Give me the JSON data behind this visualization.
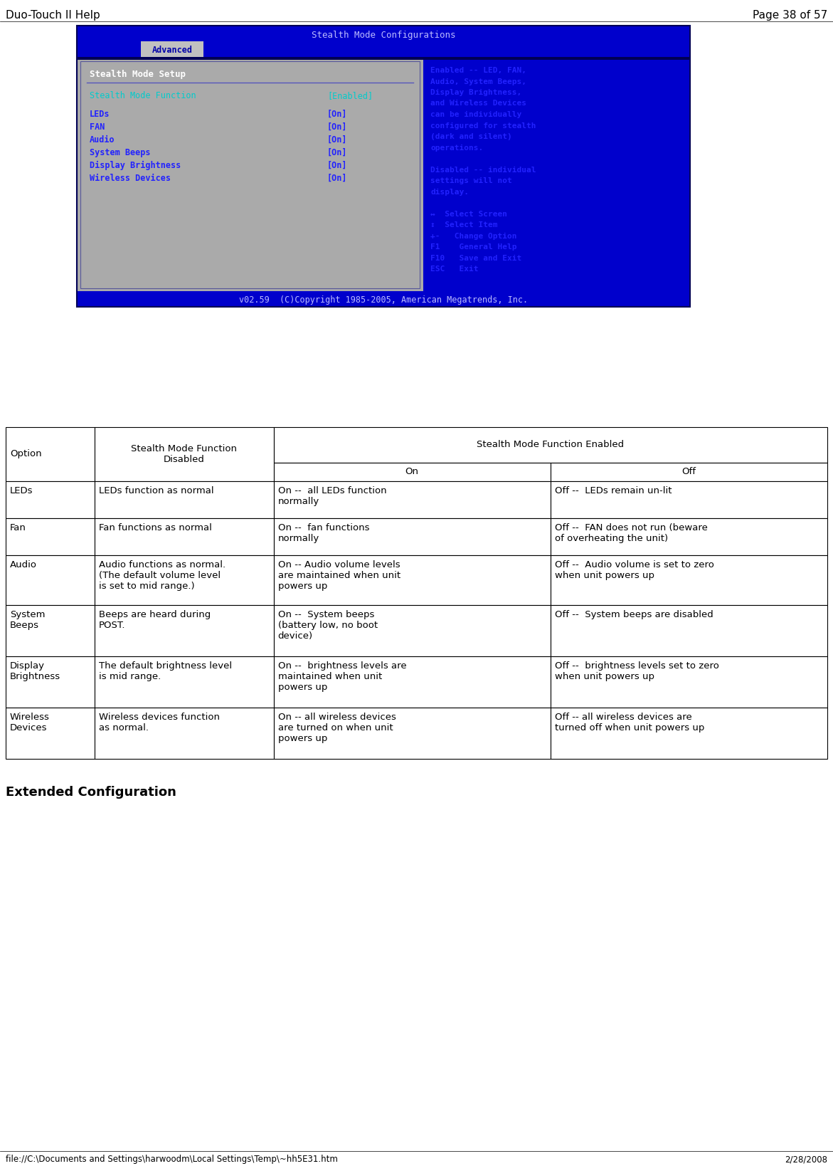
{
  "page_header_left": "Duo-Touch II Help",
  "page_header_right": "Page 38 of 57",
  "footer_left": "file://C:\\Documents and Settings\\harwoodm\\Local Settings\\Temp\\~hh5E31.htm",
  "footer_right": "2/28/2008",
  "bios_title": "Stealth Mode Configurations",
  "bios_bg_color": "#0000CC",
  "bios_tab_label": "Advanced",
  "bios_footer_text": "v02.59  (C)Copyright 1985-2005, American Megatrends, Inc.",
  "bios_left_title": "Stealth Mode Setup",
  "bios_left_item1": "Stealth Mode Function",
  "bios_left_item1_val": "[Enabled]",
  "bios_left_items": [
    [
      "LEDs",
      "[On]"
    ],
    [
      "FAN",
      "[On]"
    ],
    [
      "Audio",
      "[On]"
    ],
    [
      "System Beeps",
      "[On]"
    ],
    [
      "Display Brightness",
      "[On]"
    ],
    [
      "Wireless Devices",
      "[On]"
    ]
  ],
  "bios_right_lines": [
    "Enabled -- LED, FAN,",
    "Audio, System Beeps,",
    "Display Brightness,",
    "and Wireless Devices",
    "can be individually",
    "configured for stealth",
    "(dark and silent)",
    "operations.",
    "",
    "Disabled -- individual",
    "settings will not",
    "display.",
    "",
    "↔  Select Screen",
    "↕  Select Item",
    "+-   Change Option",
    "F1    General Help",
    "F10   Save and Exit",
    "ESC   Exit"
  ],
  "section_title": "Extended Configuration",
  "table_rows": [
    [
      "LEDs",
      "LEDs function as normal",
      "On --  all LEDs function\nnormally",
      "Off --  LEDs remain un-lit"
    ],
    [
      "Fan",
      "Fan functions as normal",
      "On --  fan functions\nnormally",
      "Off --  FAN does not run (beware\nof overheating the unit)"
    ],
    [
      "Audio",
      "Audio functions as normal.\n(The default volume level\nis set to mid range.)",
      "On -- Audio volume levels\nare maintained when unit\npowers up",
      "Off --  Audio volume is set to zero\nwhen unit powers up"
    ],
    [
      "System\nBeeps",
      "Beeps are heard during\nPOST.",
      "On --  System beeps\n(battery low, no boot\ndevice)",
      "Off --  System beeps are disabled"
    ],
    [
      "Display\nBrightness",
      "The default brightness level\nis mid range.",
      "On --  brightness levels are\nmaintained when unit\npowers up",
      "Off --  brightness levels set to zero\nwhen unit powers up"
    ],
    [
      "Wireless\nDevices",
      "Wireless devices function\nas normal.",
      "On -- all wireless devices\nare turned on when unit\npowers up",
      "Off -- all wireless devices are\nturned off when unit powers up"
    ]
  ],
  "bg_color": "#ffffff"
}
